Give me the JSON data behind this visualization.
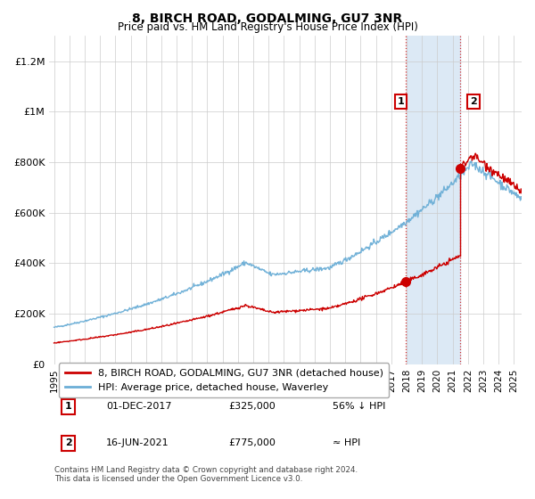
{
  "title": "8, BIRCH ROAD, GODALMING, GU7 3NR",
  "subtitle": "Price paid vs. HM Land Registry's House Price Index (HPI)",
  "hpi_color": "#6baed6",
  "price_color": "#cc0000",
  "background_color": "#ffffff",
  "grid_color": "#cccccc",
  "ylim": [
    0,
    1300000
  ],
  "xlim_start": 1994.7,
  "xlim_end": 2025.5,
  "yticks": [
    0,
    200000,
    400000,
    600000,
    800000,
    1000000,
    1200000
  ],
  "ytick_labels": [
    "£0",
    "£200K",
    "£400K",
    "£600K",
    "£800K",
    "£1M",
    "£1.2M"
  ],
  "xticks": [
    1995,
    1996,
    1997,
    1998,
    1999,
    2000,
    2001,
    2002,
    2003,
    2004,
    2005,
    2006,
    2007,
    2008,
    2009,
    2010,
    2011,
    2012,
    2013,
    2014,
    2015,
    2016,
    2017,
    2018,
    2019,
    2020,
    2021,
    2022,
    2023,
    2024,
    2025
  ],
  "transaction1_x": 2017.92,
  "transaction1_y": 325000,
  "transaction2_x": 2021.46,
  "transaction2_y": 775000,
  "legend_line1": "8, BIRCH ROAD, GODALMING, GU7 3NR (detached house)",
  "legend_line2": "HPI: Average price, detached house, Waverley",
  "table_rows": [
    {
      "num": "1",
      "date": "01-DEC-2017",
      "price": "£325,000",
      "hpi": "56% ↓ HPI"
    },
    {
      "num": "2",
      "date": "16-JUN-2021",
      "price": "£775,000",
      "hpi": "≈ HPI"
    }
  ],
  "footnote": "Contains HM Land Registry data © Crown copyright and database right 2024.\nThis data is licensed under the Open Government Licence v3.0.",
  "highlight_band_start": 2018.0,
  "highlight_band_end": 2021.5,
  "highlight_band_color": "#dce9f5"
}
